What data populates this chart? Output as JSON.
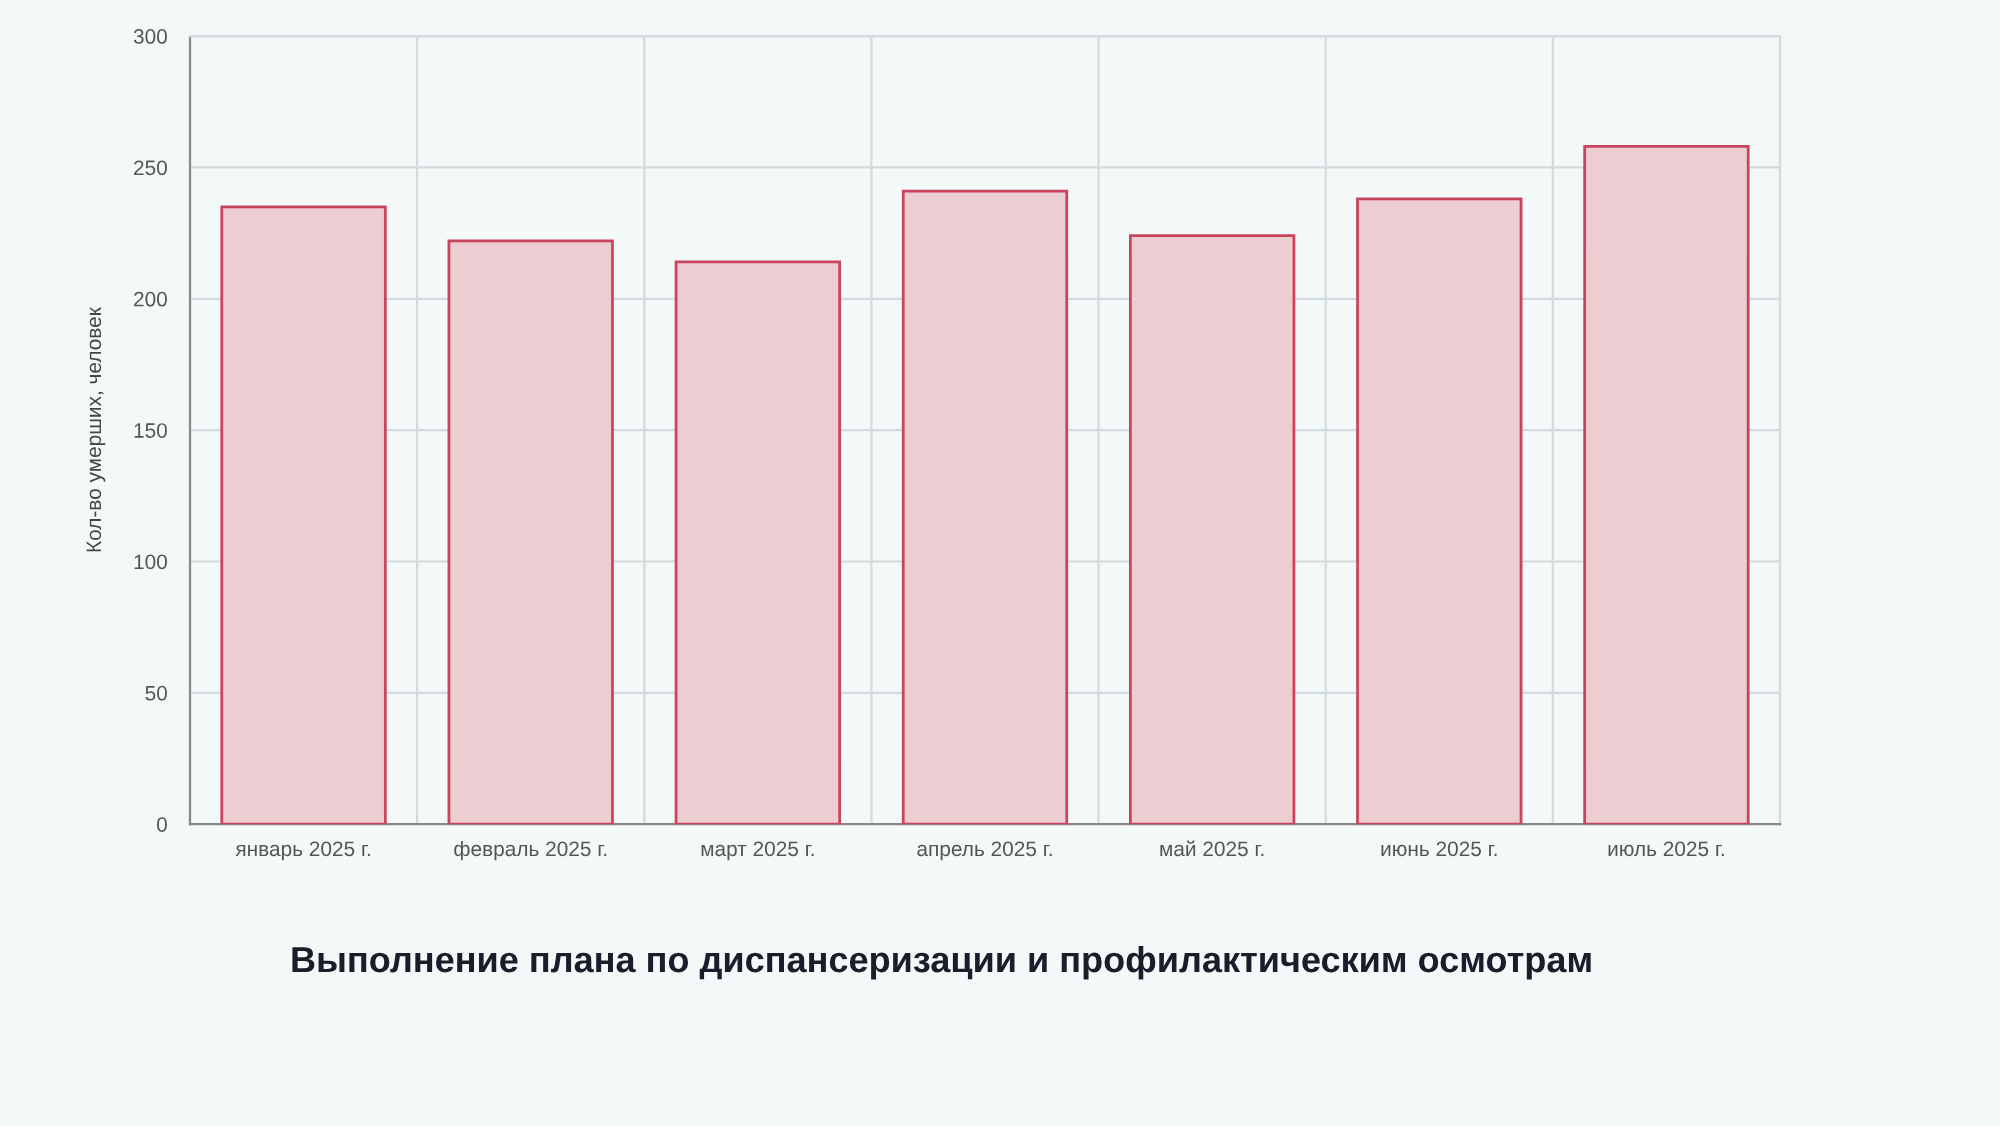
{
  "chart_data": {
    "type": "bar",
    "ylabel": "Кол-во умерших, человек",
    "categories": [
      "январь 2025 г.",
      "февраль 2025 г.",
      "март 2025 г.",
      "апрель 2025 г.",
      "май 2025 г.",
      "июнь 2025 г.",
      "июль 2025 г."
    ],
    "values": [
      235,
      222,
      214,
      241,
      224,
      238,
      258
    ],
    "color": "#ebcdd2",
    "ylim": [
      0,
      300
    ],
    "yticks": [
      0,
      50,
      100,
      150,
      200,
      250,
      300
    ],
    "grid": true,
    "annotations": [
      "Выполнение плана по диспансеризации и профилактическим осмотрам"
    ]
  }
}
